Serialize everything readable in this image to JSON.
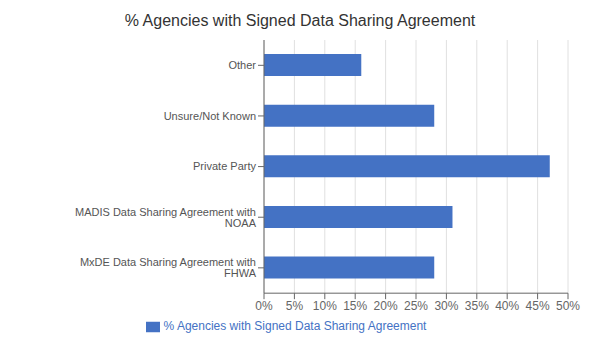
{
  "chart_data": {
    "type": "bar",
    "title": "% Agencies with Signed Data Sharing Agreement",
    "orientation": "horizontal",
    "categories": [
      "MxDE Data Sharing Agreement with FHWA",
      "MADIS Data Sharing Agreement with NOAA",
      "Private Party",
      "Unsure/Not Known",
      "Other"
    ],
    "series": [
      {
        "name": "% Agencies with Signed Data Sharing Agreement",
        "color": "#4472C4",
        "values": [
          28,
          31,
          47,
          28,
          16
        ]
      }
    ],
    "xlim": [
      0,
      50
    ],
    "xticks": [
      {
        "value": 0,
        "label": "0%"
      },
      {
        "value": 5,
        "label": "5%"
      },
      {
        "value": 10,
        "label": "10%"
      },
      {
        "value": 15,
        "label": "15%"
      },
      {
        "value": 20,
        "label": "20%"
      },
      {
        "value": 25,
        "label": "25%"
      },
      {
        "value": 30,
        "label": "30%"
      },
      {
        "value": 35,
        "label": "35%"
      },
      {
        "value": 40,
        "label": "40%"
      },
      {
        "value": 45,
        "label": "45%"
      },
      {
        "value": 50,
        "label": "50%"
      }
    ],
    "grid": true,
    "legend": "bottom"
  }
}
